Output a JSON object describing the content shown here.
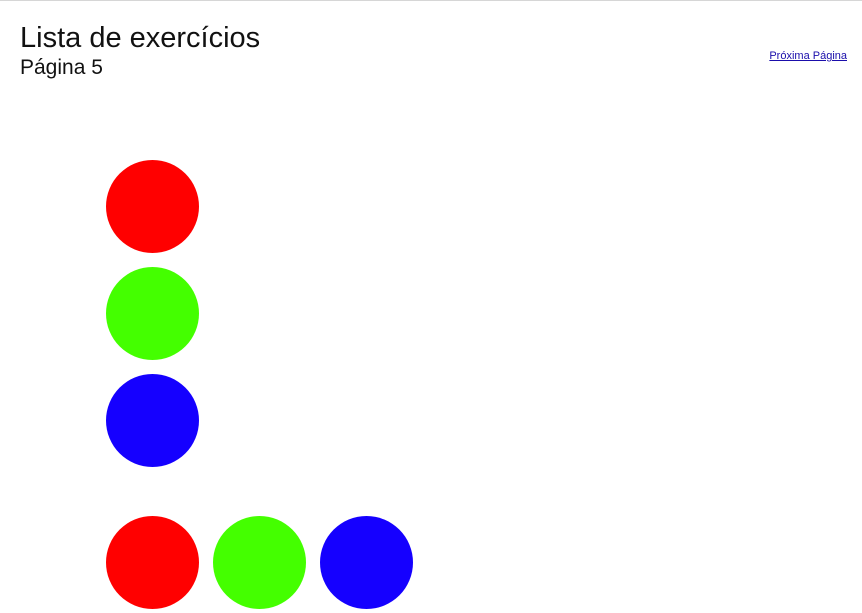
{
  "header": {
    "title": "Lista de exercícios",
    "subtitle": "Página 5"
  },
  "nav": {
    "next_label": "Próxima Página"
  },
  "colors": {
    "red": "#ff0000",
    "green": "#44ff00",
    "blue": "#1500ff"
  },
  "circles": {
    "column": [
      "red",
      "green",
      "blue"
    ],
    "row": [
      "red",
      "green",
      "blue"
    ]
  }
}
